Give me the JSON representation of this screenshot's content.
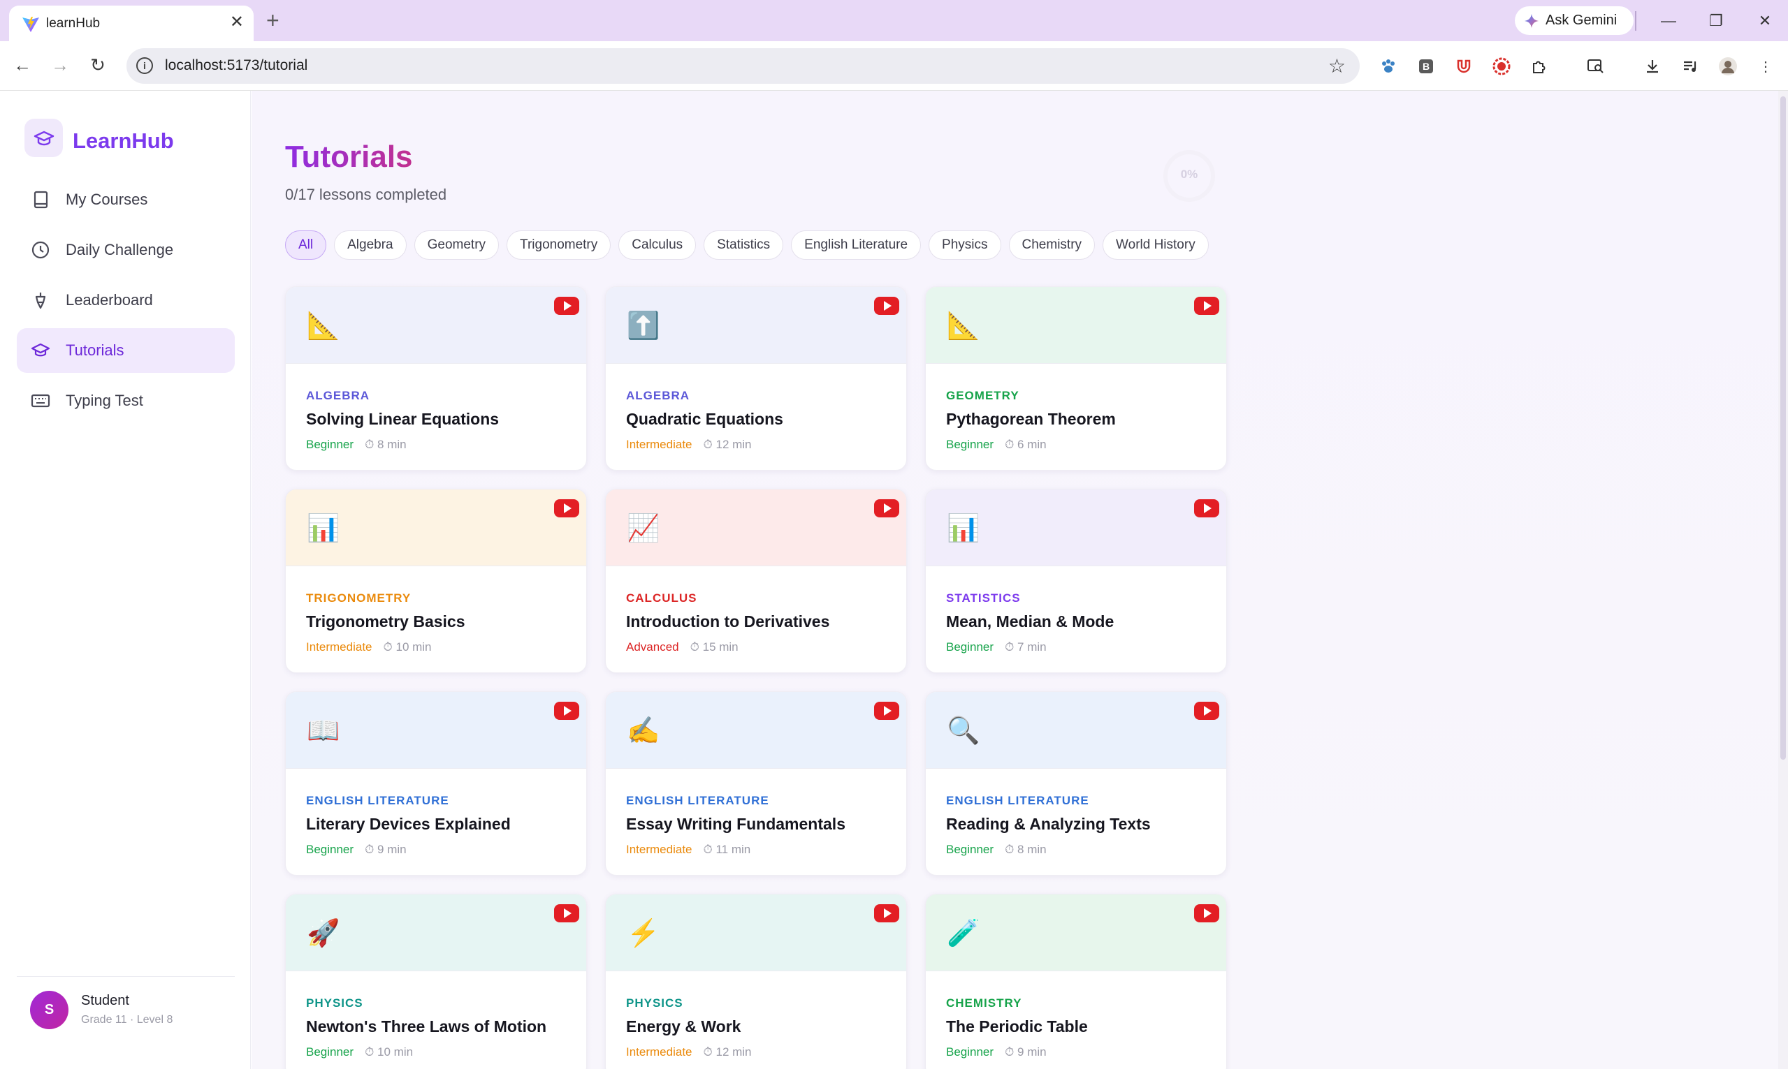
{
  "browser": {
    "tab_title": "learnHub",
    "tab_close": "✕",
    "new_tab": "+",
    "url": "localhost:5173/tutorial",
    "gemini_label": "Ask Gemini",
    "win_min": "—",
    "win_restore": "❐",
    "win_close": "✕"
  },
  "sidebar": {
    "logo_text": "LearnHub",
    "items": [
      {
        "label": "My Courses",
        "icon": "book-icon"
      },
      {
        "label": "Daily Challenge",
        "icon": "clock-icon"
      },
      {
        "label": "Leaderboard",
        "icon": "trophy-icon"
      },
      {
        "label": "Tutorials",
        "icon": "graduation-cap-icon",
        "active": true
      },
      {
        "label": "Typing Test",
        "icon": "keyboard-icon"
      }
    ],
    "user": {
      "initial": "S",
      "name": "Student",
      "meta": "Grade 11 · Level 8"
    }
  },
  "main": {
    "title": "Tutorials",
    "progress_text": "0/17 lessons completed",
    "progress_percent": "0%",
    "filters": [
      "All",
      "Algebra",
      "Geometry",
      "Trigonometry",
      "Calculus",
      "Statistics",
      "English Literature",
      "Physics",
      "Chemistry",
      "World History"
    ],
    "active_filter": "All",
    "cards": [
      {
        "icon": "📐",
        "icon_name": "triangle-ruler-icon",
        "category": "ALGEBRA",
        "title": "Solving Linear Equations",
        "level": "Beginner",
        "duration": "⏱ 8 min",
        "top_bg": "#eef0fb",
        "cat_color": "#5b57d8",
        "level_color": "#16a34a"
      },
      {
        "icon": "⬆️",
        "icon_name": "up-arrow-icon",
        "category": "ALGEBRA",
        "title": "Quadratic Equations",
        "level": "Intermediate",
        "duration": "⏱ 12 min",
        "top_bg": "#eef0fb",
        "cat_color": "#5b57d8",
        "level_color": "#ea8a0c"
      },
      {
        "icon": "📐",
        "icon_name": "triangle-ruler-icon",
        "category": "GEOMETRY",
        "title": "Pythagorean Theorem",
        "level": "Beginner",
        "duration": "⏱ 6 min",
        "top_bg": "#e7f6ee",
        "cat_color": "#16a34a",
        "level_color": "#16a34a"
      },
      {
        "icon": "📊",
        "icon_name": "bar-chart-icon",
        "category": "TRIGONOMETRY",
        "title": "Trigonometry Basics",
        "level": "Intermediate",
        "duration": "⏱ 10 min",
        "top_bg": "#fdf3e3",
        "cat_color": "#ea8a0c",
        "level_color": "#ea8a0c"
      },
      {
        "icon": "📈",
        "icon_name": "line-chart-icon",
        "category": "CALCULUS",
        "title": "Introduction to Derivatives",
        "level": "Advanced",
        "duration": "⏱ 15 min",
        "top_bg": "#fdeaea",
        "cat_color": "#dc2626",
        "level_color": "#dc2626"
      },
      {
        "icon": "📊",
        "icon_name": "bar-chart-icon",
        "category": "STATISTICS",
        "title": "Mean, Median & Mode",
        "level": "Beginner",
        "duration": "⏱ 7 min",
        "top_bg": "#f1edfb",
        "cat_color": "#7c3aed",
        "level_color": "#16a34a"
      },
      {
        "icon": "📖",
        "icon_name": "open-book-icon",
        "category": "ENGLISH LITERATURE",
        "title": "Literary Devices Explained",
        "level": "Beginner",
        "duration": "⏱ 9 min",
        "top_bg": "#eaf1fc",
        "cat_color": "#2f6fd6",
        "level_color": "#16a34a"
      },
      {
        "icon": "✍️",
        "icon_name": "writing-hand-icon",
        "category": "ENGLISH LITERATURE",
        "title": "Essay Writing Fundamentals",
        "level": "Intermediate",
        "duration": "⏱ 11 min",
        "top_bg": "#eaf1fc",
        "cat_color": "#2f6fd6",
        "level_color": "#ea8a0c"
      },
      {
        "icon": "🔍",
        "icon_name": "magnifier-icon",
        "category": "ENGLISH LITERATURE",
        "title": "Reading & Analyzing Texts",
        "level": "Beginner",
        "duration": "⏱ 8 min",
        "top_bg": "#eaf1fc",
        "cat_color": "#2f6fd6",
        "level_color": "#16a34a"
      },
      {
        "icon": "🚀",
        "icon_name": "rocket-icon",
        "category": "PHYSICS",
        "title": "Newton's Three Laws of Motion",
        "level": "Beginner",
        "duration": "⏱ 10 min",
        "top_bg": "#e6f5f3",
        "cat_color": "#0d9488",
        "level_color": "#16a34a"
      },
      {
        "icon": "⚡",
        "icon_name": "lightning-icon",
        "category": "PHYSICS",
        "title": "Energy & Work",
        "level": "Intermediate",
        "duration": "⏱ 12 min",
        "top_bg": "#e6f5f3",
        "cat_color": "#0d9488",
        "level_color": "#ea8a0c"
      },
      {
        "icon": "🧪",
        "icon_name": "test-tube-icon",
        "category": "CHEMISTRY",
        "title": "The Periodic Table",
        "level": "Beginner",
        "duration": "⏱ 9 min",
        "top_bg": "#e7f6ec",
        "cat_color": "#16a34a",
        "level_color": "#16a34a"
      }
    ]
  }
}
